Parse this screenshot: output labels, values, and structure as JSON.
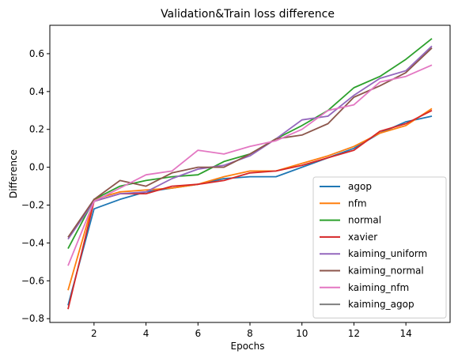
{
  "chart_data": {
    "type": "line",
    "title": "Validation&Train loss difference",
    "xlabel": "Epochs",
    "ylabel": "Difference",
    "xlim": [
      0.3,
      15.7
    ],
    "ylim": [
      -0.82,
      0.75
    ],
    "xticks": [
      2,
      4,
      6,
      8,
      10,
      12,
      14
    ],
    "yticks": [
      -0.8,
      -0.6,
      -0.4,
      -0.2,
      0.0,
      0.2,
      0.4,
      0.6
    ],
    "ytick_labels": [
      "−0.8",
      "−0.6",
      "−0.4",
      "−0.2",
      "0.0",
      "0.2",
      "0.4",
      "0.6"
    ],
    "grid": false,
    "legend_position": "bottom-right",
    "x": [
      1,
      2,
      3,
      4,
      5,
      6,
      7,
      8,
      9,
      10,
      11,
      12,
      13,
      14,
      15
    ],
    "series": [
      {
        "name": "agop",
        "color": "#1f77b4",
        "values": [
          -0.73,
          -0.22,
          -0.17,
          -0.13,
          -0.11,
          -0.09,
          -0.06,
          -0.05,
          -0.05,
          0.0,
          0.05,
          0.1,
          0.18,
          0.24,
          0.27
        ]
      },
      {
        "name": "nfm",
        "color": "#ff7f0e",
        "values": [
          -0.65,
          -0.17,
          -0.13,
          -0.12,
          -0.11,
          -0.09,
          -0.05,
          -0.02,
          -0.02,
          0.02,
          0.06,
          0.11,
          0.18,
          0.22,
          0.31
        ]
      },
      {
        "name": "normal",
        "color": "#2ca02c",
        "values": [
          -0.43,
          -0.17,
          -0.1,
          -0.07,
          -0.05,
          -0.04,
          0.03,
          0.07,
          0.15,
          0.22,
          0.3,
          0.42,
          0.48,
          0.57,
          0.68
        ]
      },
      {
        "name": "xavier",
        "color": "#d62728",
        "values": [
          -0.75,
          -0.18,
          -0.14,
          -0.14,
          -0.1,
          -0.09,
          -0.07,
          -0.03,
          -0.02,
          0.01,
          0.05,
          0.09,
          0.19,
          0.23,
          0.3
        ]
      },
      {
        "name": "kaiming_uniform",
        "color": "#9467bd",
        "values": [
          -0.38,
          -0.18,
          -0.14,
          -0.13,
          -0.06,
          -0.01,
          0.01,
          0.06,
          0.15,
          0.25,
          0.27,
          0.38,
          0.47,
          0.51,
          0.64
        ]
      },
      {
        "name": "kaiming_normal",
        "color": "#8c564b",
        "values": [
          -0.37,
          -0.17,
          -0.07,
          -0.1,
          -0.03,
          0.0,
          0.0,
          0.07,
          0.15,
          0.17,
          0.23,
          0.37,
          0.43,
          0.5,
          0.63
        ]
      },
      {
        "name": "kaiming_nfm",
        "color": "#e377c2",
        "values": [
          -0.52,
          -0.18,
          -0.11,
          -0.04,
          -0.02,
          0.09,
          0.07,
          0.11,
          0.14,
          0.2,
          0.3,
          0.33,
          0.45,
          0.48,
          0.54
        ]
      },
      {
        "name": "kaiming_agop",
        "color": "#7f7f7f",
        "values": [
          null,
          null,
          null,
          null,
          null,
          null,
          null,
          null,
          null,
          null,
          null,
          null,
          null,
          null,
          null
        ]
      }
    ]
  }
}
